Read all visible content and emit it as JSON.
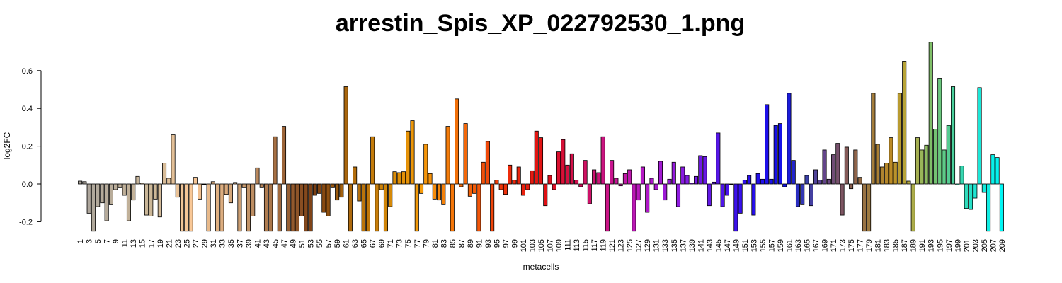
{
  "chart_data": {
    "type": "bar",
    "title": "arrestin_Spis_XP_022792530_1.png",
    "xlabel": "metacells",
    "ylabel": "log2FC",
    "ylim": [
      -0.25,
      0.75
    ],
    "yticks": [
      -0.2,
      0.0,
      0.2,
      0.4,
      0.6
    ],
    "ytick_labels": [
      "-0.2",
      "0.0",
      "0.2",
      "0.4",
      "0.6"
    ],
    "grid": false,
    "legend": "none",
    "categories": [
      "1",
      "2",
      "3",
      "4",
      "5",
      "6",
      "7",
      "8",
      "9",
      "10",
      "11",
      "12",
      "13",
      "14",
      "15",
      "16",
      "17",
      "18",
      "19",
      "20",
      "21",
      "22",
      "23",
      "24",
      "25",
      "26",
      "27",
      "28",
      "29",
      "30",
      "31",
      "32",
      "33",
      "34",
      "35",
      "36",
      "37",
      "38",
      "39",
      "40",
      "41",
      "42",
      "43",
      "44",
      "45",
      "46",
      "47",
      "48",
      "49",
      "50",
      "51",
      "52",
      "53",
      "54",
      "55",
      "56",
      "57",
      "58",
      "59",
      "60",
      "61",
      "62",
      "63",
      "64",
      "65",
      "66",
      "67",
      "68",
      "69",
      "70",
      "71",
      "72",
      "73",
      "74",
      "75",
      "76",
      "77",
      "78",
      "79",
      "80",
      "81",
      "82",
      "83",
      "84",
      "85",
      "86",
      "87",
      "88",
      "89",
      "90",
      "91",
      "92",
      "93",
      "94",
      "95",
      "96",
      "97",
      "98",
      "99",
      "100",
      "101",
      "102",
      "103",
      "104",
      "105",
      "106",
      "107",
      "108",
      "109",
      "110",
      "111",
      "112",
      "113",
      "114",
      "115",
      "116",
      "117",
      "118",
      "119",
      "120",
      "121",
      "122",
      "123",
      "124",
      "125",
      "126",
      "127",
      "128",
      "129",
      "130",
      "131",
      "132",
      "133",
      "134",
      "135",
      "136",
      "137",
      "138",
      "139",
      "140",
      "141",
      "142",
      "143",
      "144",
      "145",
      "146",
      "147",
      "148",
      "149",
      "150",
      "151",
      "152",
      "153",
      "154",
      "155",
      "156",
      "157",
      "158",
      "159",
      "160",
      "161",
      "162",
      "163",
      "164",
      "165",
      "166",
      "167",
      "168",
      "169",
      "170",
      "171",
      "172",
      "173",
      "174",
      "175",
      "176",
      "177",
      "178",
      "179",
      "180",
      "181",
      "182",
      "183",
      "184",
      "185",
      "186",
      "187",
      "188",
      "189",
      "190",
      "191",
      "192",
      "193",
      "194",
      "195",
      "196",
      "197",
      "198",
      "199",
      "200",
      "201",
      "202",
      "203",
      "204",
      "205",
      "206",
      "207",
      "208",
      "209"
    ],
    "xtick_labels_shown": [
      "1",
      "3",
      "5",
      "7",
      "9",
      "11",
      "13",
      "15",
      "17",
      "19",
      "21",
      "23",
      "25",
      "27",
      "29",
      "31",
      "33",
      "35",
      "37",
      "39",
      "41",
      "43",
      "45",
      "47",
      "49",
      "51",
      "53",
      "55",
      "57",
      "59",
      "61",
      "63",
      "65",
      "67",
      "69",
      "71",
      "73",
      "75",
      "77",
      "79",
      "81",
      "83",
      "85",
      "87",
      "89",
      "91",
      "93",
      "95",
      "97",
      "99",
      "101",
      "103",
      "105",
      "107",
      "109",
      "111",
      "113",
      "115",
      "117",
      "119",
      "121",
      "123",
      "125",
      "127",
      "129",
      "131",
      "133",
      "135",
      "137",
      "139",
      "141",
      "143",
      "145",
      "147",
      "149",
      "151",
      "153",
      "155",
      "157",
      "159",
      "161",
      "163",
      "165",
      "167",
      "169",
      "171",
      "173",
      "175",
      "177",
      "179",
      "181",
      "183",
      "185",
      "187",
      "189",
      "191",
      "193",
      "195",
      "197",
      "199",
      "201",
      "203",
      "205",
      "207",
      "209"
    ],
    "values": [
      0.015,
      0.012,
      -0.155,
      -0.25,
      -0.12,
      -0.1,
      -0.195,
      -0.11,
      -0.03,
      -0.02,
      -0.06,
      -0.195,
      -0.085,
      0.04,
      0.005,
      -0.165,
      -0.17,
      -0.08,
      -0.175,
      0.11,
      0.03,
      0.26,
      -0.07,
      -0.25,
      -0.25,
      -0.25,
      0.035,
      -0.08,
      0.0,
      -0.25,
      0.012,
      -0.25,
      -0.25,
      -0.055,
      -0.1,
      0.008,
      -0.25,
      -0.02,
      -0.25,
      -0.17,
      0.085,
      -0.02,
      -0.25,
      -0.25,
      0.25,
      -0.25,
      0.305,
      -0.25,
      -0.25,
      -0.25,
      -0.17,
      -0.25,
      -0.25,
      -0.06,
      -0.05,
      -0.15,
      -0.17,
      -0.02,
      -0.085,
      -0.07,
      0.515,
      -0.25,
      0.09,
      -0.09,
      -0.25,
      -0.25,
      0.25,
      -0.25,
      -0.03,
      -0.25,
      -0.12,
      0.065,
      0.06,
      0.065,
      0.28,
      0.335,
      -0.25,
      -0.05,
      0.21,
      0.055,
      -0.08,
      -0.085,
      -0.11,
      0.305,
      -0.25,
      0.45,
      -0.015,
      0.32,
      -0.065,
      -0.05,
      -0.25,
      0.115,
      0.225,
      -0.25,
      0.02,
      -0.03,
      -0.055,
      0.1,
      0.02,
      0.09,
      -0.06,
      -0.03,
      0.07,
      0.28,
      0.245,
      -0.115,
      0.045,
      -0.03,
      0.17,
      0.235,
      0.1,
      0.16,
      0.02,
      -0.015,
      0.125,
      -0.105,
      0.075,
      0.06,
      0.25,
      -0.25,
      0.125,
      0.03,
      -0.01,
      0.055,
      0.075,
      -0.25,
      -0.085,
      0.09,
      -0.15,
      0.03,
      -0.03,
      0.12,
      -0.085,
      0.025,
      0.115,
      -0.12,
      0.09,
      0.045,
      0.005,
      0.04,
      0.15,
      0.145,
      -0.115,
      0.01,
      0.27,
      -0.12,
      -0.06,
      0.0,
      -0.25,
      -0.155,
      0.02,
      0.045,
      -0.165,
      0.055,
      0.025,
      0.42,
      0.025,
      0.31,
      0.32,
      -0.015,
      0.48,
      0.125,
      -0.12,
      -0.11,
      0.045,
      -0.115,
      0.075,
      0.02,
      0.18,
      0.025,
      0.155,
      0.215,
      -0.165,
      0.195,
      -0.025,
      0.18,
      0.035,
      -0.25,
      -0.25,
      0.48,
      0.21,
      0.09,
      0.11,
      0.245,
      0.115,
      0.48,
      0.65,
      0.015,
      -0.25,
      0.245,
      0.18,
      0.205,
      0.75,
      0.29,
      0.56,
      0.18,
      0.31,
      0.515,
      -0.005,
      0.095,
      -0.13,
      -0.135,
      -0.075,
      0.51,
      -0.045,
      -0.25,
      0.155,
      0.14,
      -0.25
    ],
    "color_stops": [
      {
        "at": 1,
        "color": "#aaa49c"
      },
      {
        "at": 18,
        "color": "#cdb898"
      },
      {
        "at": 26,
        "color": "#f9c897"
      },
      {
        "at": 38,
        "color": "#c79a6f"
      },
      {
        "at": 47,
        "color": "#9c6438"
      },
      {
        "at": 54,
        "color": "#7a3e12"
      },
      {
        "at": 61,
        "color": "#a9660d"
      },
      {
        "at": 72,
        "color": "#d98c08"
      },
      {
        "at": 78,
        "color": "#f69b0a"
      },
      {
        "at": 90,
        "color": "#f25c09"
      },
      {
        "at": 98,
        "color": "#ee2c0b"
      },
      {
        "at": 106,
        "color": "#e00f14"
      },
      {
        "at": 114,
        "color": "#d0105a"
      },
      {
        "at": 121,
        "color": "#c9158f"
      },
      {
        "at": 128,
        "color": "#b518c4"
      },
      {
        "at": 136,
        "color": "#8f1be0"
      },
      {
        "at": 144,
        "color": "#5c17e8"
      },
      {
        "at": 152,
        "color": "#2a0eee"
      },
      {
        "at": 160,
        "color": "#1212e6"
      },
      {
        "at": 165,
        "color": "#3a3fa8"
      },
      {
        "at": 169,
        "color": "#63448a"
      },
      {
        "at": 175,
        "color": "#8a5e4e"
      },
      {
        "at": 179,
        "color": "#9e7a40"
      },
      {
        "at": 184,
        "color": "#bb8a25"
      },
      {
        "at": 187,
        "color": "#b8a437"
      },
      {
        "at": 190,
        "color": "#a6b052"
      },
      {
        "at": 193,
        "color": "#7fbf68"
      },
      {
        "at": 199,
        "color": "#3fd3a6"
      },
      {
        "at": 203,
        "color": "#1fe4d2"
      },
      {
        "at": 209,
        "color": "#00f6f4"
      }
    ]
  }
}
